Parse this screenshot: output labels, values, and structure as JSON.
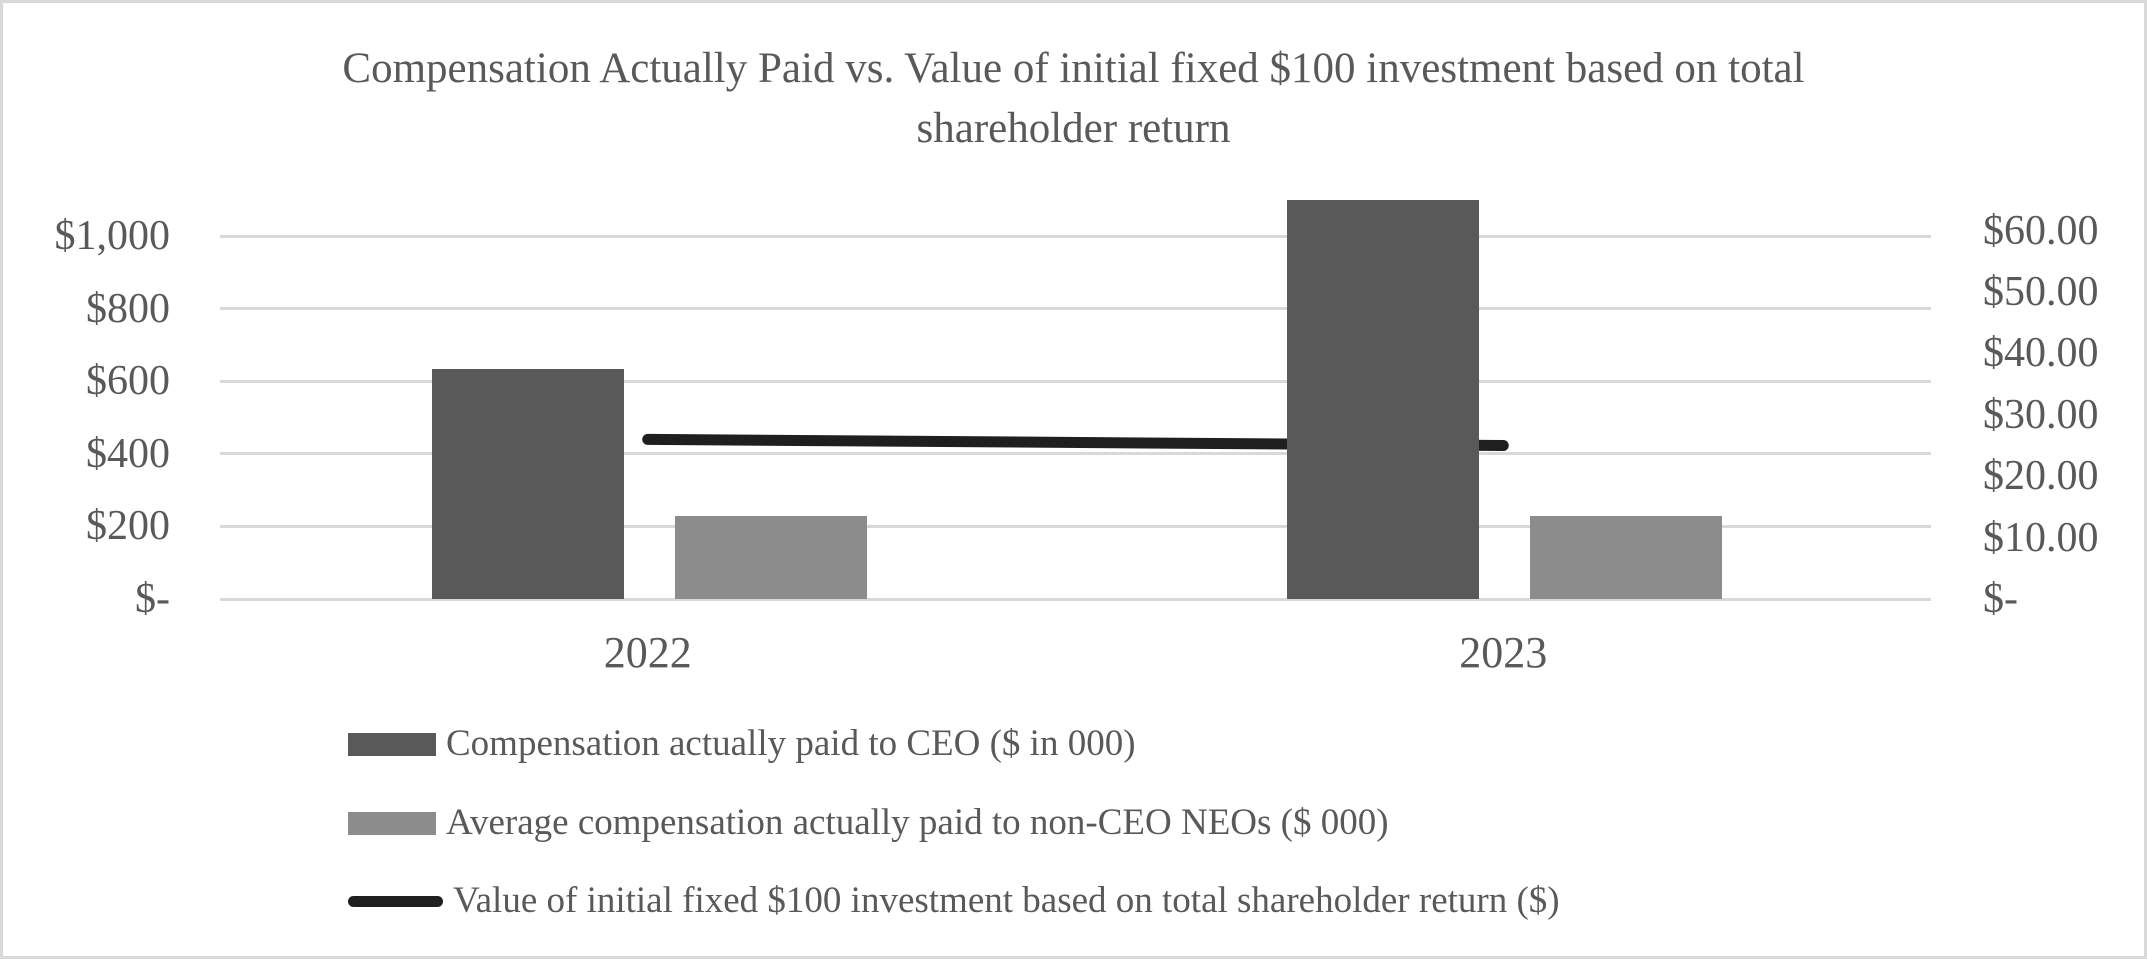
{
  "chart_data": {
    "type": "bar",
    "subtype": "combo-bar-line-dual-axis",
    "title": "Compensation Actually Paid vs. Value of initial fixed $100 investment based on total shareholder return",
    "title_lines": [
      "Compensation Actually Paid vs. Value of initial fixed $100 investment based on total",
      "shareholder return"
    ],
    "categories": [
      "2022",
      "2023"
    ],
    "series": [
      {
        "name": "Compensation actually paid to CEO ($ in 000)",
        "type": "bar",
        "axis": "left",
        "color": "#595959",
        "values": [
          635,
          1100
        ]
      },
      {
        "name": "Average compensation actually paid to non-CEO NEOs ($ 000)",
        "type": "bar",
        "axis": "left",
        "color": "#8C8C8C",
        "values": [
          228,
          228
        ]
      },
      {
        "name": "Value of initial fixed $100 investment based on total shareholder return ($)",
        "type": "line",
        "axis": "right",
        "color": "#1F1F1F",
        "values": [
          26,
          25
        ]
      }
    ],
    "axes": {
      "left": {
        "range": [
          0,
          1100
        ],
        "tick_values": [
          1000,
          800,
          600,
          400,
          200,
          0
        ],
        "ticks": [
          "$1,000",
          "$800",
          "$600",
          "$400",
          "$200",
          "$-"
        ]
      },
      "right": {
        "range": [
          0,
          65
        ],
        "tick_values": [
          60,
          50,
          40,
          30,
          20,
          10,
          0
        ],
        "ticks": [
          "$60.00",
          "$50.00",
          "$40.00",
          "$30.00",
          "$20.00",
          "$10.00",
          "$-"
        ]
      }
    },
    "xlabel": "",
    "ylabel": "",
    "grid": "horizontal",
    "legend_position": "bottom-left",
    "colors": {
      "text": "#595959",
      "grid": "#D9D9D9",
      "background": "#FFFFFF",
      "frame_border": "#D9D9D9"
    }
  }
}
